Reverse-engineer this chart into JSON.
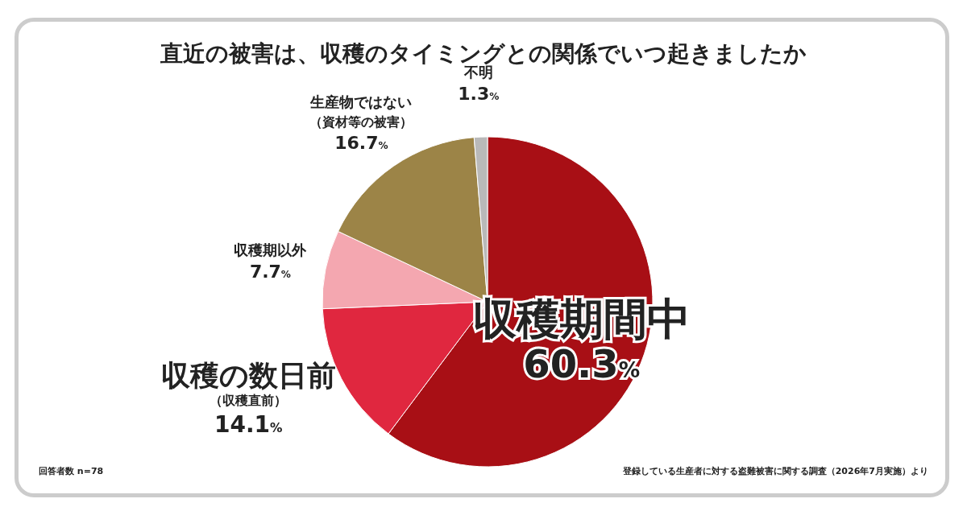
{
  "chart_data": {
    "type": "pie",
    "title": "直近の被害は、収穫のタイミングとの関係でいつ起きましたか",
    "categories": [
      "収穫期間中",
      "収穫の数日前（収穫直前）",
      "収穫期以外",
      "生産物ではない（資材等の被害）",
      "不明"
    ],
    "values": [
      60.3,
      14.1,
      7.7,
      16.7,
      1.3
    ],
    "colors": [
      "#a80f15",
      "#e0273f",
      "#f4a7b0",
      "#9c8447",
      "#b9b9b9"
    ],
    "value_labels": [
      "60.3%",
      "14.1%",
      "7.7%",
      "16.7%",
      "1.3%"
    ],
    "annotations": [
      "回答者数 n=78",
      "登録している生産者に対する盗難被害に関する調査（2026年7月実施）より"
    ]
  }
}
